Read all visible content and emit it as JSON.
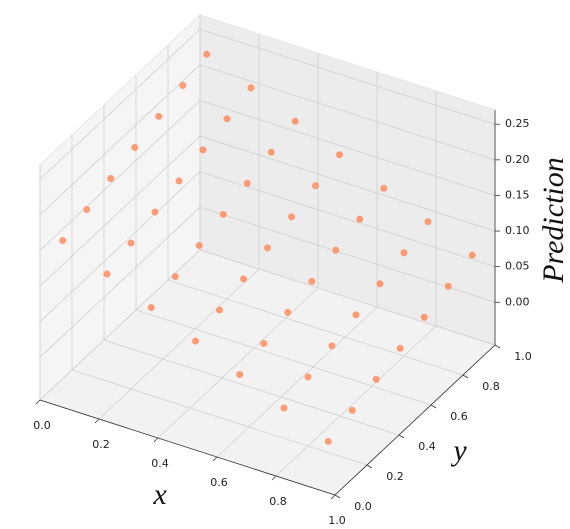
{
  "chart_data": {
    "type": "scatter3d",
    "color": "#ff8c5f",
    "xlabel": "x",
    "ylabel": "y",
    "zlabel": "Prediction",
    "xlim": [
      0,
      1
    ],
    "ylim": [
      0,
      1
    ],
    "zlim": [
      -0.06,
      0.27
    ],
    "xticks": [
      {
        "value": 0,
        "label": "0.0"
      },
      0.2,
      0.4,
      0.6,
      0.8,
      {
        "value": 1,
        "label": "1.0"
      }
    ],
    "yticks": [
      {
        "value": 0,
        "label": "0.0"
      },
      0.2,
      0.4,
      0.6,
      0.8,
      {
        "value": 1,
        "label": "1.0"
      }
    ],
    "zticks": [
      {
        "value": 0,
        "label": "0.00"
      },
      0.05,
      {
        "value": 0.1,
        "label": "0.10"
      },
      0.15,
      {
        "value": 0.2,
        "label": "0.20"
      },
      0.25
    ],
    "grid": true,
    "x": [
      0.05,
      0.05,
      0.05,
      0.05,
      0.05,
      0.05,
      0.05,
      0.2,
      0.2,
      0.2,
      0.2,
      0.2,
      0.2,
      0.2,
      0.35,
      0.35,
      0.35,
      0.35,
      0.35,
      0.35,
      0.35,
      0.5,
      0.5,
      0.5,
      0.5,
      0.5,
      0.5,
      0.5,
      0.65,
      0.65,
      0.65,
      0.65,
      0.65,
      0.65,
      0.65,
      0.8,
      0.8,
      0.8,
      0.8,
      0.8,
      0.8,
      0.8,
      0.95,
      0.95,
      0.95,
      0.95,
      0.95,
      0.95,
      0.95
    ],
    "y": [
      0.05,
      0.2,
      0.35,
      0.5,
      0.65,
      0.8,
      0.95,
      0.05,
      0.2,
      0.35,
      0.5,
      0.65,
      0.8,
      0.95,
      0.05,
      0.2,
      0.35,
      0.5,
      0.65,
      0.8,
      0.95,
      0.05,
      0.2,
      0.35,
      0.5,
      0.65,
      0.8,
      0.95,
      0.05,
      0.2,
      0.35,
      0.5,
      0.65,
      0.8,
      0.95,
      0.05,
      0.2,
      0.35,
      0.5,
      0.65,
      0.8,
      0.95,
      0.05,
      0.2,
      0.35,
      0.5,
      0.65,
      0.8,
      0.95
    ],
    "z": [
      0.16,
      0.172,
      0.184,
      0.196,
      0.208,
      0.22,
      0.232,
      0.133,
      0.145,
      0.157,
      0.169,
      0.181,
      0.193,
      0.205,
      0.106,
      0.118,
      0.13,
      0.142,
      0.154,
      0.166,
      0.178,
      0.079,
      0.091,
      0.103,
      0.115,
      0.127,
      0.139,
      0.151,
      0.052,
      0.064,
      0.076,
      0.088,
      0.1,
      0.112,
      0.124,
      0.025,
      0.037,
      0.049,
      0.061,
      0.073,
      0.085,
      0.097,
      -0.002,
      0.01,
      0.022,
      0.034,
      0.046,
      0.058,
      0.07
    ]
  }
}
